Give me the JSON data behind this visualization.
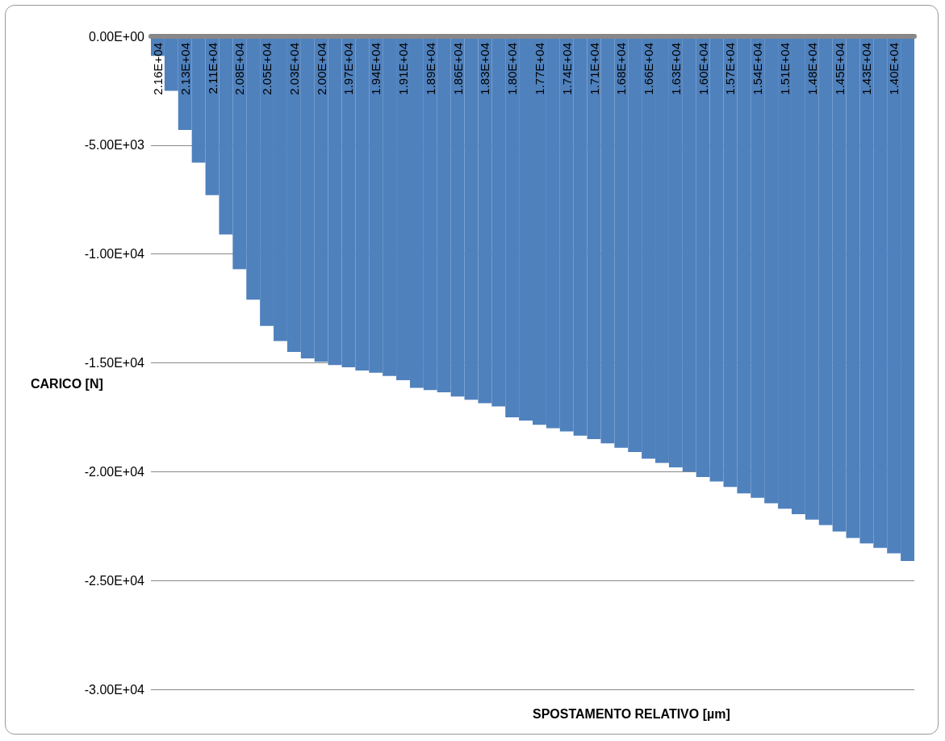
{
  "chart_data": {
    "type": "bar",
    "xlabel": "SPOSTAMENTO RELATIVO [µm]",
    "ylabel": "CARICO [N]",
    "categories": [
      "2.16E+04",
      null,
      "2.13E+04",
      null,
      "2.11E+04",
      null,
      "2.08E+04",
      null,
      "2.05E+04",
      null,
      "2.03E+04",
      null,
      "2.00E+04",
      null,
      "1.97E+04",
      null,
      "1.94E+04",
      null,
      "1.91E+04",
      null,
      "1.89E+04",
      null,
      "1.86E+04",
      null,
      "1.83E+04",
      null,
      "1.80E+04",
      null,
      "1.77E+04",
      null,
      "1.74E+04",
      null,
      "1.71E+04",
      null,
      "1.68E+04",
      null,
      "1.66E+04",
      null,
      "1.63E+04",
      null,
      "1.60E+04",
      null,
      "1.57E+04",
      null,
      "1.54E+04",
      null,
      "1.51E+04",
      null,
      "1.48E+04",
      null,
      "1.45E+04",
      null,
      "1.43E+04",
      null,
      "1.40E+04",
      null
    ],
    "values": [
      -900,
      -2500,
      -4300,
      -5800,
      -7300,
      -9100,
      -10700,
      -12100,
      -13300,
      -14000,
      -14500,
      -14800,
      -14950,
      -15100,
      -15200,
      -15350,
      -15450,
      -15600,
      -15800,
      -16150,
      -16250,
      -16350,
      -16550,
      -16700,
      -16850,
      -17000,
      -17500,
      -17650,
      -17850,
      -18000,
      -18150,
      -18350,
      -18500,
      -18700,
      -18900,
      -19100,
      -19400,
      -19600,
      -19800,
      -20000,
      -20250,
      -20450,
      -20700,
      -21000,
      -21200,
      -21450,
      -21700,
      -21950,
      -22200,
      -22450,
      -22750,
      -23050,
      -23300,
      -23500,
      -23750,
      -24100
    ],
    "color": "#4f81bd",
    "ylim": [
      -30000,
      0
    ],
    "yticks": [
      {
        "value": -30000,
        "label": "-3.00E+04"
      },
      {
        "value": -25000,
        "label": "-2.50E+04"
      },
      {
        "value": -20000,
        "label": "-2.00E+04"
      },
      {
        "value": -15000,
        "label": "-1.50E+04"
      },
      {
        "value": -10000,
        "label": "-1.00E+04"
      },
      {
        "value": -5000,
        "label": "-5.00E+03"
      },
      {
        "value": 0,
        "label": "0.00E+00"
      }
    ],
    "grid": "y"
  }
}
